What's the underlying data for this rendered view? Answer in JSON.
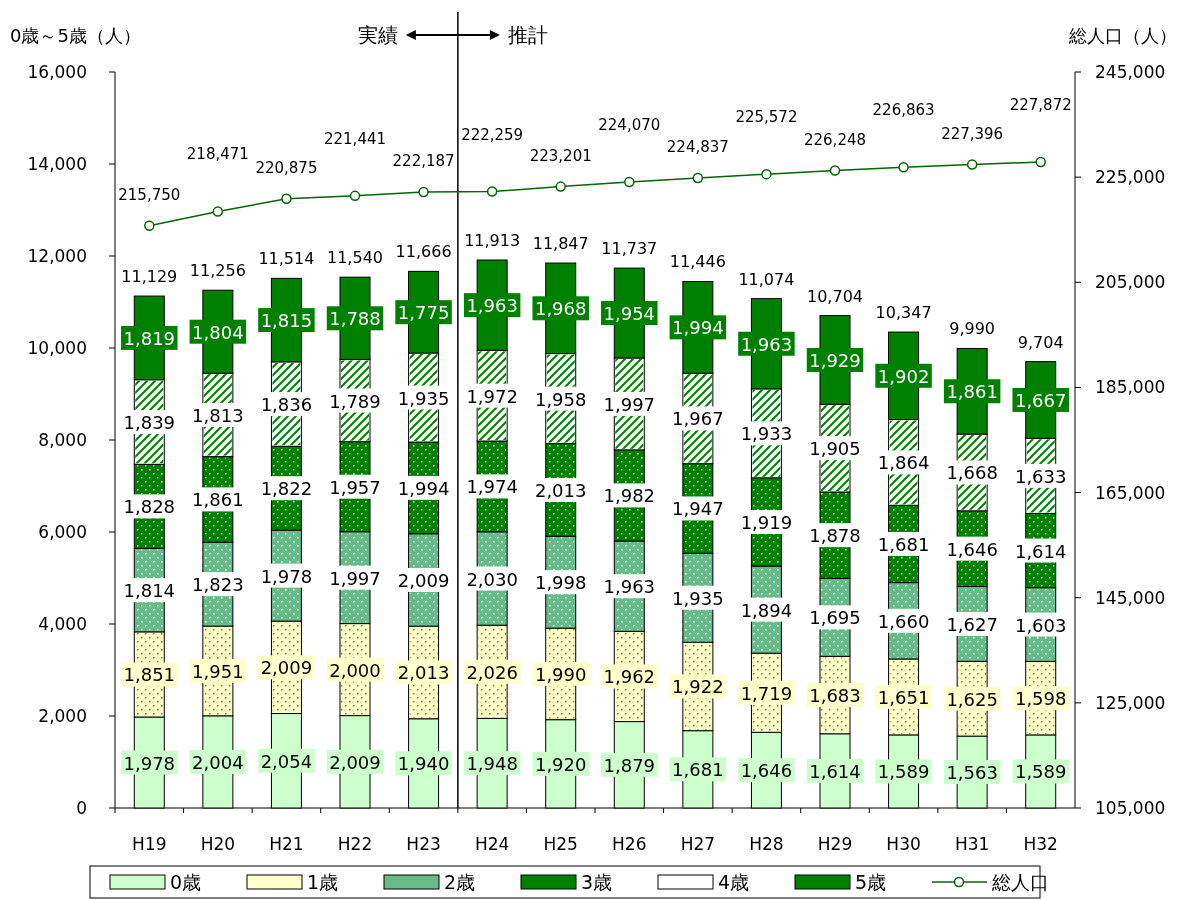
{
  "chart_data": {
    "type": "bar",
    "stacked": true,
    "ylabel": "0歳～5歳（人）",
    "y2label": "総人口（人）",
    "categories": [
      "H19",
      "H20",
      "H21",
      "H22",
      "H23",
      "H24",
      "H25",
      "H26",
      "H27",
      "H28",
      "H29",
      "H30",
      "H31",
      "H32"
    ],
    "series": [
      {
        "name": "0歳",
        "color": "#ccffcc",
        "values": [
          1978,
          2004,
          2054,
          2009,
          1940,
          1948,
          1920,
          1879,
          1681,
          1646,
          1614,
          1589,
          1563,
          1589
        ],
        "value_labels": [
          "1,978",
          "2,004",
          "2,054",
          "2,009",
          "1,940",
          "1,948",
          "1,920",
          "1,879",
          "1,681",
          "1,646",
          "1,614",
          "1,589",
          "1,563",
          "1,589"
        ]
      },
      {
        "name": "1歳",
        "color": "#ffffcc",
        "values": [
          1851,
          1951,
          2009,
          2000,
          2013,
          2026,
          1990,
          1962,
          1922,
          1719,
          1683,
          1651,
          1625,
          1598
        ],
        "value_labels": [
          "1,851",
          "1,951",
          "2,009",
          "2,000",
          "2,013",
          "2,026",
          "1,990",
          "1,962",
          "1,922",
          "1,719",
          "1,683",
          "1,651",
          "1,625",
          "1,598"
        ]
      },
      {
        "name": "2歳",
        "color": "#66bb88",
        "values": [
          1814,
          1823,
          1978,
          1997,
          2009,
          2030,
          1998,
          1963,
          1935,
          1894,
          1695,
          1660,
          1627,
          1603
        ],
        "value_labels": [
          "1,814",
          "1,823",
          "1,978",
          "1,997",
          "2,009",
          "2,030",
          "1,998",
          "1,963",
          "1,935",
          "1,894",
          "1,695",
          "1,660",
          "1,627",
          "1,603"
        ]
      },
      {
        "name": "3歳",
        "color": "#008000",
        "values": [
          1828,
          1861,
          1822,
          1957,
          1994,
          1974,
          2013,
          1982,
          1947,
          1919,
          1878,
          1681,
          1646,
          1614
        ],
        "value_labels": [
          "1,828",
          "1,861",
          "1,822",
          "1,957",
          "1,994",
          "1,974",
          "2,013",
          "1,982",
          "1,947",
          "1,919",
          "1,878",
          "1,681",
          "1,646",
          "1,614"
        ]
      },
      {
        "name": "4歳",
        "color": "#ffffff",
        "values": [
          1839,
          1813,
          1836,
          1789,
          1935,
          1972,
          1958,
          1997,
          1967,
          1933,
          1905,
          1864,
          1668,
          1633
        ],
        "value_labels": [
          "1,839",
          "1,813",
          "1,836",
          "1,789",
          "1,935",
          "1,972",
          "1,958",
          "1,997",
          "1,967",
          "1,933",
          "1,905",
          "1,864",
          "1,668",
          "1,633"
        ]
      },
      {
        "name": "5歳",
        "color": "#008000",
        "values": [
          1819,
          1804,
          1815,
          1788,
          1775,
          1963,
          1968,
          1954,
          1994,
          1963,
          1929,
          1902,
          1861,
          1667
        ],
        "value_labels": [
          "1,819",
          "1,804",
          "1,815",
          "1,788",
          "1,775",
          "1,963",
          "1,968",
          "1,954",
          "1,994",
          "1,963",
          "1,929",
          "1,902",
          "1,861",
          "1,667"
        ]
      },
      {
        "name": "総人口",
        "type": "line",
        "axis": "y2",
        "color": "#006600",
        "marker": "circle",
        "values": [
          215750,
          218471,
          220875,
          221441,
          222187,
          222259,
          223201,
          224070,
          224837,
          225572,
          226248,
          226863,
          227396,
          227872
        ],
        "value_labels": [
          "215,750",
          "218,471",
          "220,875",
          "221,441",
          "222,187",
          "222,259",
          "223,201",
          "224,070",
          "224,837",
          "225,572",
          "226,248",
          "226,863",
          "227,396",
          "227,872"
        ]
      }
    ],
    "totals": [
      "11,129",
      "11,256",
      "11,514",
      "11,540",
      "11,666",
      "11,913",
      "11,847",
      "11,737",
      "11,446",
      "11,074",
      "10,704",
      "10,347",
      "9,990",
      "9,704"
    ],
    "ylim": [
      0,
      16000
    ],
    "yticks": [
      0,
      {
        "value": 2000,
        "label": "2,000"
      },
      {
        "value": 4000,
        "label": "4,000"
      },
      {
        "value": 6000,
        "label": "6,000"
      },
      {
        "value": 8000,
        "label": "8,000"
      },
      {
        "value": 10000,
        "label": "10,000"
      },
      {
        "value": 12000,
        "label": "12,000"
      },
      {
        "value": 14000,
        "label": "14,000"
      },
      {
        "value": 16000,
        "label": "16,000"
      }
    ],
    "y2lim": [
      105000,
      245000
    ],
    "y2ticks": [
      {
        "value": 105000,
        "label": "105,000"
      },
      {
        "value": 125000,
        "label": "125,000"
      },
      {
        "value": 145000,
        "label": "145,000"
      },
      {
        "value": 165000,
        "label": "165,000"
      },
      {
        "value": 185000,
        "label": "185,000"
      },
      {
        "value": 205000,
        "label": "205,000"
      },
      {
        "value": 225000,
        "label": "225,000"
      },
      {
        "value": 245000,
        "label": "245,000"
      }
    ],
    "annotations": [
      "実績",
      "推計"
    ],
    "legend": "bottom",
    "grid": false
  }
}
